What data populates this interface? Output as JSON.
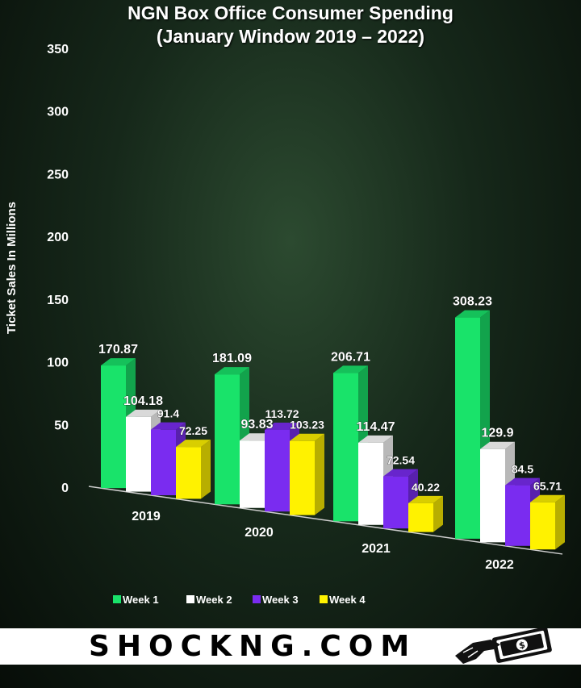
{
  "chart_data": {
    "type": "bar",
    "title": "NGN Box Office Consumer Spending",
    "subtitle": "(January Window 2019 – 2022)",
    "ylabel": "Ticket Sales In Millions",
    "xlabel": "",
    "ylim": [
      0,
      350
    ],
    "yticks": [
      "0",
      "50",
      "100",
      "150",
      "200",
      "250",
      "300",
      "350"
    ],
    "categories": [
      "2019",
      "2020",
      "2021",
      "2022"
    ],
    "series": [
      {
        "name": "Week 1",
        "color": "#19e36a",
        "values": [
          170.87,
          181.09,
          206.71,
          308.23
        ],
        "labels": [
          "170.87",
          "181.09",
          "206.71",
          "308.23"
        ]
      },
      {
        "name": "Week 2",
        "color": "#ffffff",
        "values": [
          104.18,
          93.83,
          114.47,
          129.9
        ],
        "labels": [
          "104.18",
          "93.83",
          "114.47",
          "129.9"
        ]
      },
      {
        "name": "Week 3",
        "color": "#7a2cf0",
        "values": [
          91.4,
          113.72,
          72.54,
          84.5
        ],
        "labels": [
          "91.4",
          "113.72",
          "72.54",
          "84.5"
        ]
      },
      {
        "name": "Week 4",
        "color": "#fff200",
        "values": [
          72.25,
          103.23,
          40.22,
          65.71
        ],
        "labels": [
          "72.25",
          "103.23",
          "40.22",
          "65.71"
        ]
      }
    ],
    "legend_position": "bottom",
    "grid": false
  },
  "footer": {
    "brand": "SHOCKNG.COM"
  },
  "icons": {
    "brand_icon": "hand-holding-money-icon"
  }
}
